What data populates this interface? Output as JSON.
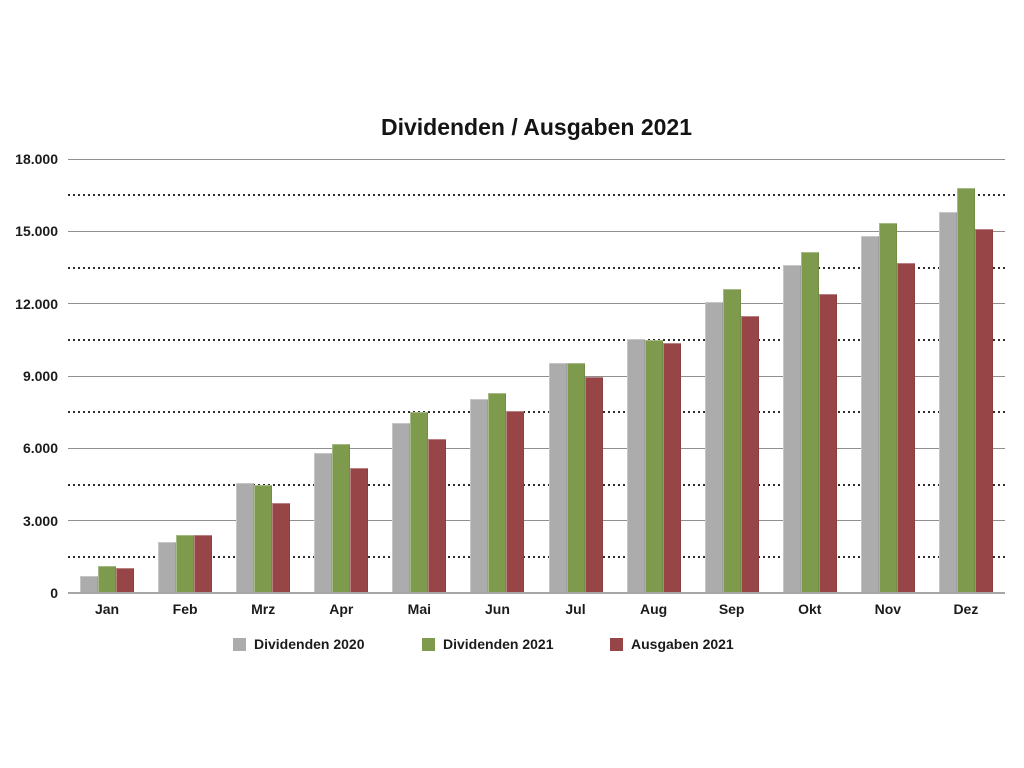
{
  "chart_data": {
    "type": "bar",
    "title": "Dividenden / Ausgaben 2021",
    "categories": [
      "Jan",
      "Feb",
      "Mrz",
      "Apr",
      "Mai",
      "Jun",
      "Jul",
      "Aug",
      "Sep",
      "Okt",
      "Nov",
      "Dez"
    ],
    "series": [
      {
        "name": "Dividenden 2020",
        "color": "#acacac",
        "values": [
          700,
          2100,
          4550,
          5800,
          7050,
          8050,
          9550,
          10550,
          12050,
          13600,
          14800,
          15800
        ]
      },
      {
        "name": "Dividenden 2021",
        "color": "#7d9a4d",
        "values": [
          1100,
          2400,
          4500,
          6200,
          7500,
          8300,
          9550,
          10500,
          12600,
          14150,
          15350,
          16800
        ]
      },
      {
        "name": "Ausgaben 2021",
        "color": "#984547",
        "values": [
          1050,
          2400,
          3750,
          5200,
          6400,
          7550,
          8950,
          10350,
          11500,
          12400,
          13700,
          15100
        ]
      }
    ],
    "ylim": [
      0,
      18000
    ],
    "y_major_ticks": [
      0,
      3000,
      6000,
      9000,
      12000,
      15000,
      18000
    ],
    "y_tick_labels": [
      "0",
      "3.000",
      "6.000",
      "9.000",
      "12.000",
      "15.000",
      "18.000"
    ],
    "y_minor_ticks": [
      1500,
      4500,
      7500,
      10500,
      13500,
      16500
    ],
    "grid": {
      "major": "solid",
      "minor": "dotted"
    },
    "legend_position": "bottom",
    "xlabel": "",
    "ylabel": ""
  },
  "colors": {
    "background": "#ffffff",
    "grid_major": "#8f8f8f",
    "grid_minor": "#2e2e2e",
    "axis_line": "#a6a6a6",
    "text": "#1b1b1b"
  }
}
